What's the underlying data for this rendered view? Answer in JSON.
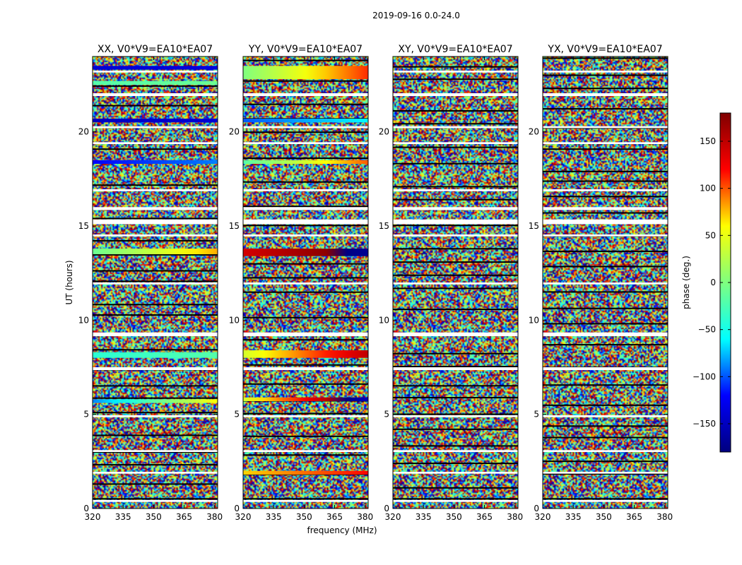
{
  "figure": {
    "suptitle": "2019-09-16 0.0-24.0",
    "ylabel": "UT (hours)",
    "xlabel": "frequency (MHz)"
  },
  "chart_data": {
    "type": "heatmap",
    "x": {
      "label": "frequency (MHz)",
      "range": [
        320,
        381.5
      ],
      "ticks": [
        320,
        335,
        350,
        365,
        380
      ]
    },
    "y": {
      "label": "UT (hours)",
      "range": [
        0,
        24
      ],
      "ticks": [
        0,
        5,
        10,
        15,
        20
      ]
    },
    "colorbar": {
      "label": "phase (deg.)",
      "range": [
        -180,
        180
      ],
      "ticks": [
        -150,
        -100,
        -50,
        0,
        50,
        100,
        150
      ],
      "tick_labels": [
        "−150",
        "−100",
        "−50",
        "0",
        "50",
        "100",
        "150"
      ],
      "colormap": [
        "#00007f",
        "#0000ff",
        "#00ffff",
        "#7fff7f",
        "#ffff00",
        "#ff0000",
        "#7f0000"
      ]
    },
    "gaps_ut_hours": [
      [
        0.35,
        0.45
      ],
      [
        1.85,
        1.95
      ],
      [
        3.0,
        3.1
      ],
      [
        4.85,
        4.95
      ],
      [
        7.35,
        7.5
      ],
      [
        9.15,
        9.35
      ],
      [
        11.9,
        12.0
      ],
      [
        14.45,
        14.55
      ],
      [
        15.1,
        15.35
      ],
      [
        15.85,
        16.0
      ],
      [
        16.85,
        16.95
      ],
      [
        19.35,
        19.45
      ],
      [
        20.2,
        20.3
      ],
      [
        21.9,
        22.05
      ],
      [
        23.15,
        23.25
      ]
    ],
    "coherent_bands": [
      {
        "panel": "XX",
        "ut": [
          23.3,
          23.5
        ],
        "start": -140,
        "end": -135
      },
      {
        "panel": "XX",
        "ut": [
          22.5,
          22.7
        ],
        "start": -20,
        "end": -10
      },
      {
        "panel": "XX",
        "ut": [
          20.5,
          20.7
        ],
        "start": -150,
        "end": -140
      },
      {
        "panel": "XX",
        "ut": [
          18.3,
          18.5
        ],
        "start": -120,
        "end": -90
      },
      {
        "panel": "XX",
        "ut": [
          13.5,
          13.8
        ],
        "start": -10,
        "end": 80
      },
      {
        "panel": "XX",
        "ut": [
          8.0,
          8.3
        ],
        "start": -40,
        "end": -20
      },
      {
        "panel": "XX",
        "ut": [
          5.6,
          5.8
        ],
        "start": -90,
        "end": 60
      },
      {
        "panel": "YY",
        "ut": [
          22.8,
          23.5
        ],
        "start": 0,
        "end": 110
      },
      {
        "panel": "YY",
        "ut": [
          20.5,
          20.7
        ],
        "start": -100,
        "end": -60
      },
      {
        "panel": "YY",
        "ut": [
          18.3,
          18.5
        ],
        "start": -20,
        "end": 100
      },
      {
        "panel": "YY",
        "ut": [
          13.4,
          13.8
        ],
        "start": 140,
        "end": -170
      },
      {
        "panel": "YY",
        "ut": [
          8.0,
          8.4
        ],
        "start": 40,
        "end": 150
      },
      {
        "panel": "YY",
        "ut": [
          5.7,
          5.9
        ],
        "start": 40,
        "end": -150
      },
      {
        "panel": "YY",
        "ut": [
          1.8,
          2.0
        ],
        "start": 70,
        "end": 120
      }
    ],
    "panels": [
      {
        "polarization": "XX",
        "title": "XX, V0*V9=EA10*EA07"
      },
      {
        "polarization": "YY",
        "title": "YY, V0*V9=EA10*EA07"
      },
      {
        "polarization": "XY",
        "title": "XY, V0*V9=EA10*EA07"
      },
      {
        "polarization": "YX",
        "title": "YX, V0*V9=EA10*EA07"
      }
    ]
  }
}
